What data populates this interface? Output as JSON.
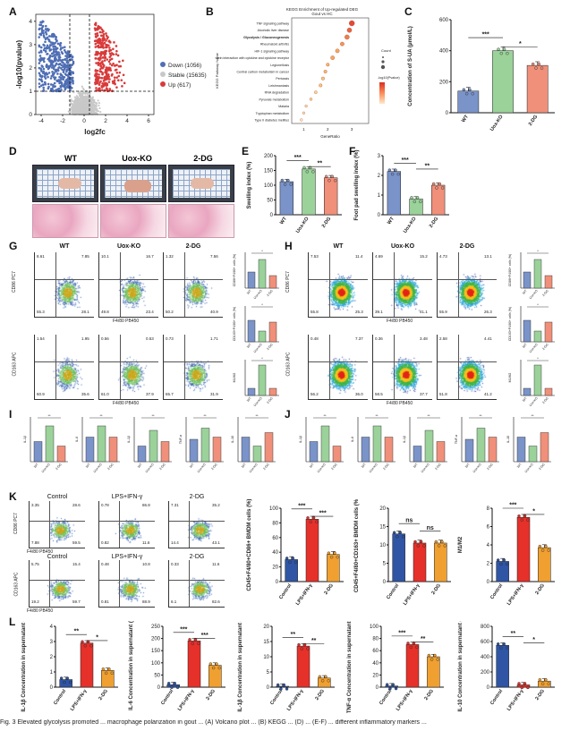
{
  "panels": {
    "A": "A",
    "B": "B",
    "C": "C",
    "D": "D",
    "E": "E",
    "F": "F",
    "G": "G",
    "H": "H",
    "I": "I",
    "J": "J",
    "K": "K",
    "L": "L"
  },
  "volcano": {
    "xlabel": "log2fc",
    "ylabel": "-log10(pvalue)",
    "xticks": [
      "-4",
      "-2",
      "0",
      "2",
      "4",
      "6"
    ],
    "yticks": [
      "0",
      "1",
      "2",
      "3",
      "4"
    ],
    "legend": [
      {
        "label": "Down (1056)",
        "color": "#4f6fb5"
      },
      {
        "label": "Stable (15635)",
        "color": "#c8c8c8"
      },
      {
        "label": "Up (617)",
        "color": "#d93a3a"
      }
    ]
  },
  "kegg": {
    "title": "KEGG Enrichment of Up-regulated DEG",
    "subtitle": "Gout vs HC",
    "ylabel": "KEGG Pathway Name",
    "xlabel": "GeneRatio",
    "terms": [
      "TNF signaling pathway",
      "Alcoholic liver disease",
      "Glycolysis / Gluconeogenesis",
      "Rheumatoid arthritis",
      "HIF-1 signaling pathway",
      "Viral protein interaction with cytokine and cytokine receptor",
      "Legionellosis",
      "Central carbon metabolism in cancer",
      "Pertussis",
      "Leishmaniasis",
      "RNA degradation",
      "Pyruvate metabolism",
      "Malaria",
      "Tryptophan metabolism",
      "Type II diabetes mellitus"
    ],
    "highlight_index": 2,
    "highlight_color": "#d0141e",
    "xticks": [
      "1",
      "2",
      "3"
    ],
    "legend_count_title": "Count",
    "legend_p_title": "-log10(Pvalue)"
  },
  "chart_data": [
    {
      "type": "bar",
      "panel": "C",
      "categories": [
        "WT",
        "Uox-KO",
        "2-DG"
      ],
      "values": [
        140,
        400,
        305
      ],
      "ylabel": "Concentration of S-UA (μmol/L)",
      "ylim": [
        0,
        600
      ],
      "yticks": [
        "0",
        "200",
        "400",
        "600"
      ],
      "colors": [
        "#7a93c9",
        "#9ad29a",
        "#f0907a"
      ],
      "sig": [
        "***",
        "*"
      ]
    },
    {
      "type": "bar",
      "panel": "E",
      "categories": [
        "WT",
        "Uox-KO",
        "2-DG"
      ],
      "values": [
        112,
        155,
        125
      ],
      "ylabel": "Swelling index (%)",
      "ylim": [
        0,
        200
      ],
      "yticks": [
        "0",
        "50",
        "100",
        "150",
        "200"
      ],
      "colors": [
        "#7a93c9",
        "#9ad29a",
        "#f0907a"
      ],
      "sig": [
        "***",
        "**"
      ]
    },
    {
      "type": "bar",
      "panel": "F",
      "categories": [
        "WT",
        "Uox-KO",
        "2-DG"
      ],
      "values": [
        2.2,
        0.8,
        1.5
      ],
      "ylabel": "Foot pad swelling index (%)",
      "ylim": [
        0,
        3
      ],
      "yticks": [
        "0",
        "1",
        "2",
        "3"
      ],
      "colors": [
        "#7a93c9",
        "#9ad29a",
        "#f0907a"
      ],
      "sig": [
        "***",
        "**"
      ]
    },
    {
      "type": "bar",
      "panel": "K1",
      "categories": [
        "Control",
        "LPS+IFN-γ",
        "2-DG"
      ],
      "values": [
        30,
        85,
        37
      ],
      "ylabel": "CD45+F4/80+CD86+ BMDM cells (%)",
      "ylim": [
        0,
        100
      ],
      "yticks": [
        "0",
        "20",
        "40",
        "60",
        "80",
        "100"
      ],
      "colors": [
        "#2f55a4",
        "#e5312a",
        "#f0a030"
      ],
      "sig": [
        "***",
        "***"
      ]
    },
    {
      "type": "bar",
      "panel": "K2",
      "categories": [
        "Control",
        "LPS+IFN-γ",
        "2-DG"
      ],
      "values": [
        13,
        10.5,
        10.5
      ],
      "ylabel": "CD45+F4/80+CD163+ BMDM cells (%)",
      "ylim": [
        0,
        20
      ],
      "yticks": [
        "0",
        "5",
        "10",
        "15",
        "20"
      ],
      "colors": [
        "#2f55a4",
        "#e5312a",
        "#f0a030"
      ],
      "sig": [
        "ns",
        "ns"
      ]
    },
    {
      "type": "bar",
      "panel": "K3",
      "categories": [
        "Control",
        "LPS+IFN-γ",
        "2-DG"
      ],
      "values": [
        2.2,
        7.0,
        3.7
      ],
      "ylabel": "M1/M2",
      "ylim": [
        0,
        8
      ],
      "yticks": [
        "0",
        "2",
        "4",
        "6",
        "8"
      ],
      "colors": [
        "#2f55a4",
        "#e5312a",
        "#f0a030"
      ],
      "sig": [
        "***",
        "*"
      ]
    },
    {
      "type": "bar",
      "panel": "L1",
      "categories": [
        "Control",
        "LPS+IFN-γ",
        "2-DG"
      ],
      "values": [
        0.5,
        2.9,
        1.1
      ],
      "ylabel": "IL-1β Concentration in supernatant (pg/mL)",
      "ylim": [
        0,
        4
      ],
      "yticks": [
        "0",
        "1",
        "2",
        "3",
        "4"
      ],
      "colors": [
        "#2f55a4",
        "#e5312a",
        "#f0a030"
      ],
      "sig": [
        "**",
        "*"
      ]
    },
    {
      "type": "bar",
      "panel": "L2",
      "categories": [
        "Control",
        "LPS+IFN-γ",
        "2-DG"
      ],
      "values": [
        10,
        190,
        90
      ],
      "ylabel": "IL-6 Concentration in supernatant (pg/mL)",
      "ylim": [
        0,
        250
      ],
      "yticks": [
        "0",
        "50",
        "100",
        "150",
        "200",
        "250"
      ],
      "colors": [
        "#2f55a4",
        "#e5312a",
        "#f0a030"
      ],
      "sig": [
        "***",
        "***"
      ]
    },
    {
      "type": "bar",
      "panel": "L3",
      "categories": [
        "Control",
        "LPS+IFN-γ",
        "2-DG"
      ],
      "values": [
        0.3,
        13.5,
        3.0
      ],
      "ylabel": "IL-1β Concentration in supernatant (pg/mL)",
      "ylim": [
        0,
        20
      ],
      "yticks": [
        "0",
        "5",
        "10",
        "15",
        "20"
      ],
      "colors": [
        "#2f55a4",
        "#e5312a",
        "#f0a030"
      ],
      "sig": [
        "**",
        "**"
      ]
    },
    {
      "type": "bar",
      "panel": "L4",
      "categories": [
        "Control",
        "LPS+IFN-γ",
        "2-DG"
      ],
      "values": [
        2,
        70,
        50
      ],
      "ylabel": "TNF-α Concentration in supernatant (pg/mL)",
      "ylim": [
        0,
        100
      ],
      "yticks": [
        "0",
        "20",
        "40",
        "60",
        "80",
        "100"
      ],
      "colors": [
        "#2f55a4",
        "#e5312a",
        "#f0a030"
      ],
      "sig": [
        "***",
        "**"
      ]
    },
    {
      "type": "bar",
      "panel": "L5",
      "categories": [
        "Control",
        "LPS+IFN-γ",
        "2-DG"
      ],
      "values": [
        550,
        30,
        80
      ],
      "ylabel": "IL-10 Concentration in supernatant (pg/mL)",
      "ylim": [
        0,
        800
      ],
      "yticks": [
        "0",
        "200",
        "400",
        "600",
        "800"
      ],
      "colors": [
        "#2f55a4",
        "#e5312a",
        "#f0a030"
      ],
      "sig": [
        "**",
        "*"
      ]
    }
  ],
  "photo_labels": [
    "WT",
    "Uox-KO",
    "2-DG"
  ],
  "flow_G": {
    "groups": [
      "WT",
      "Uox-KO",
      "2-DG"
    ],
    "row1_y": "CD86 PC7",
    "row2_y": "CD163 APC",
    "x": "F4/80 PB450",
    "row1_quads": [
      [
        "8.61",
        "7.85",
        "55.3",
        "28.1"
      ],
      [
        "10.1",
        "16.7",
        "49.8",
        "23.4"
      ],
      [
        "1.32",
        "7.56",
        "50.2",
        "40.9"
      ]
    ],
    "row2_quads": [
      [
        "1.54",
        "1.95",
        "60.9",
        "35.6"
      ],
      [
        "0.56",
        "0.53",
        "61.0",
        "37.9"
      ],
      [
        "0.73",
        "1.71",
        "65.7",
        "31.9"
      ]
    ]
  },
  "flow_H": {
    "groups": [
      "WT",
      "Uox-KO",
      "2-DG"
    ],
    "row1_y": "CD86 PC7",
    "row2_y": "CD163 APC",
    "x": "F4/80 PB450",
    "row1_quads": [
      [
        "7.53",
        "11.4",
        "55.8",
        "25.3"
      ],
      [
        "4.69",
        "15.2",
        "39.1",
        "41.1"
      ],
      [
        "4.73",
        "13.1",
        "55.9",
        "26.3"
      ]
    ],
    "row2_quads": [
      [
        "0.48",
        "7.37",
        "56.2",
        "36.0"
      ],
      [
        "0.36",
        "3.48",
        "58.5",
        "37.7"
      ],
      [
        "2.58",
        "4.41",
        "51.8",
        "41.2"
      ]
    ]
  },
  "flow_K": {
    "groups": [
      "Control",
      "LPS+IFN-γ",
      "2-DG"
    ],
    "row1_y": "CD86 PC7",
    "row2_y": "CD163 APC",
    "x": "F4/80 PB450",
    "row1_quads": [
      [
        "3.35",
        "28.6",
        "7.88",
        "59.5"
      ],
      [
        "0.78",
        "86.8",
        "0.82",
        "11.6"
      ],
      [
        "7.31",
        "35.2",
        "14.4",
        "43.1"
      ]
    ],
    "row2_quads": [
      [
        "5.75",
        "15.4",
        "19.2",
        "59.7"
      ],
      [
        "0.48",
        "10.8",
        "0.81",
        "88.9"
      ],
      [
        "0.33",
        "11.6",
        "6.1",
        "82.6"
      ]
    ]
  },
  "small_bar_labels": {
    "G": [
      "CD86+F4/80+ cells (%)",
      "CD163+F4/80+ cells (%)",
      "M1/M2"
    ],
    "H": [
      "CD86+F4/80+ cells (%)",
      "CD163+F4/80+ cells (%)",
      "M1/M2"
    ],
    "I": [
      "IL-1β",
      "IL-6",
      "IL-1β",
      "TNF-α",
      "IL-10"
    ],
    "J": [
      "IL-1β",
      "IL-6",
      "IL-1β",
      "TNF-α",
      "IL-10"
    ],
    "cats": [
      "WT",
      "Uox-KO",
      "2-DG"
    ]
  },
  "caption": "Fig. 3 Elevated glycolysis promoted ... macrophage polarization in gout ... (A) Volcano plot ... (B) KEGG ... (D) ... (E-F) ... different inflammatory markers ..."
}
